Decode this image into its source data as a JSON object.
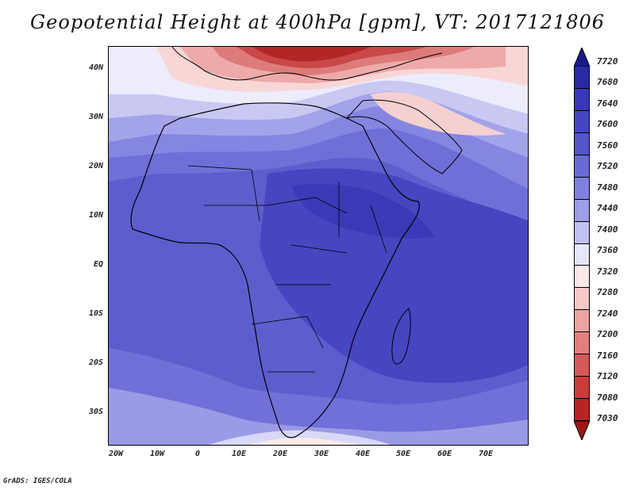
{
  "title": "Geopotential Height at 400hPa [gpm], VT: 2017121806",
  "credit": "GrADS: IGES/COLA",
  "map": {
    "lat_labels": [
      "40N",
      "30N",
      "20N",
      "10N",
      "EQ",
      "10S",
      "20S",
      "30S"
    ],
    "lon_labels": [
      "20W",
      "10W",
      "0",
      "10E",
      "20E",
      "30E",
      "40E",
      "50E",
      "60E",
      "70E"
    ],
    "colorbar": {
      "levels": [
        "7720",
        "7680",
        "7640",
        "7600",
        "7560",
        "7520",
        "7480",
        "7440",
        "7400",
        "7360",
        "7320",
        "7280",
        "7240",
        "7200",
        "7160",
        "7120",
        "7080",
        "7030"
      ],
      "colors_top_to_bottom": [
        "#1a1a8c",
        "#2a2aa6",
        "#3838b8",
        "#4646c4",
        "#5555cc",
        "#6a6ad6",
        "#8080e0",
        "#9d9de8",
        "#c0c0f2",
        "#e6e6fa",
        "#fbe8e8",
        "#f6c9c9",
        "#eea3a3",
        "#e37f7f",
        "#d65a5a",
        "#c93c3c",
        "#b82424",
        "#a01616"
      ]
    }
  }
}
